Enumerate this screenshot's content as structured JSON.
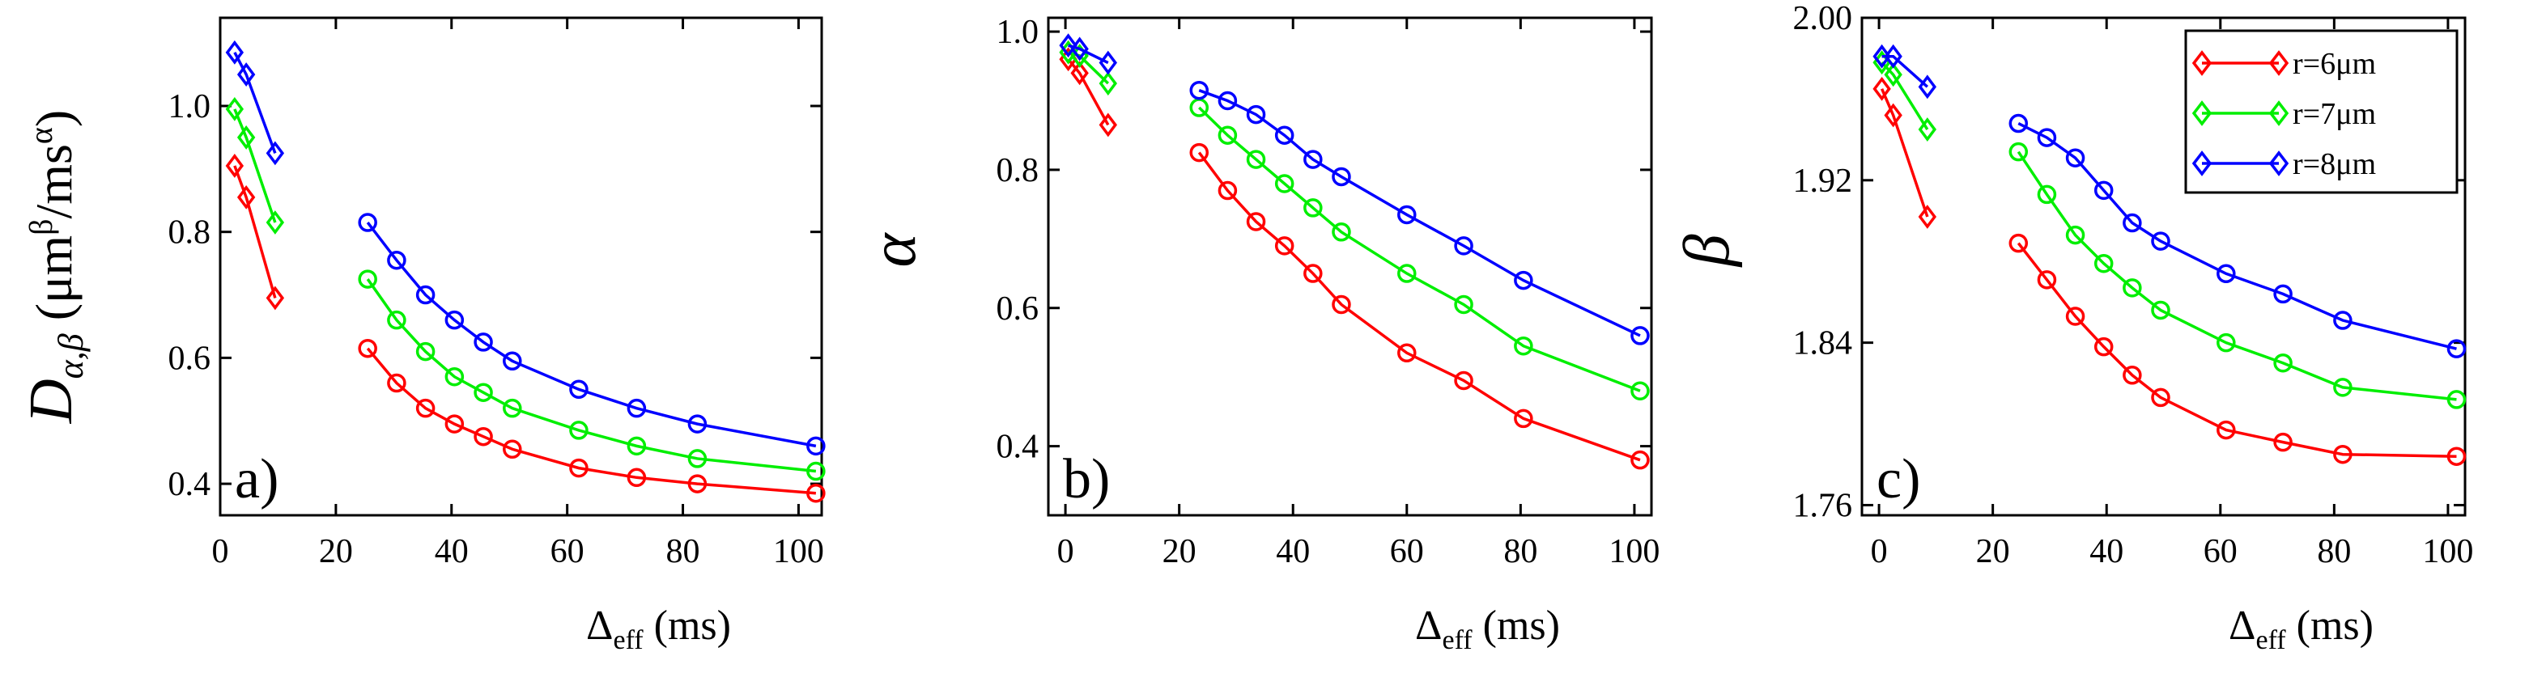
{
  "chart_data": [
    {
      "type": "line",
      "panel_label": "a)",
      "ylabel": {
        "main": "D",
        "sub": "α,β",
        "unit_open": " (μm",
        "unit_sup1": "β",
        "unit_mid": "/ms",
        "unit_sup2": "α",
        "unit_close": ")"
      },
      "xlabel": {
        "main": "Δ",
        "sub": "eff",
        "unit": " (ms)"
      },
      "xlim": [
        0,
        104
      ],
      "ylim": [
        0.35,
        1.14
      ],
      "xticks": [
        0,
        20,
        40,
        60,
        80,
        100
      ],
      "yticks": [
        0.4,
        0.6,
        0.8,
        1.0
      ],
      "ytick_labels": [
        "0.4",
        "0.6",
        "0.8",
        "1.0"
      ],
      "series": [
        {
          "name": "r=6μm",
          "color": "#ff0000",
          "groups": [
            {
              "marker": "diamond",
              "x": [
                2.5,
                4.5,
                9.5
              ],
              "y": [
                0.905,
                0.855,
                0.695
              ]
            },
            {
              "marker": "circle",
              "x": [
                25.5,
                30.5,
                35.5,
                40.5,
                45.5,
                50.5,
                62,
                72,
                82.5,
                103
              ],
              "y": [
                0.615,
                0.56,
                0.52,
                0.495,
                0.475,
                0.455,
                0.425,
                0.41,
                0.4,
                0.385
              ]
            }
          ]
        },
        {
          "name": "r=7μm",
          "color": "#00ee00",
          "groups": [
            {
              "marker": "diamond",
              "x": [
                2.5,
                4.5,
                9.5
              ],
              "y": [
                0.995,
                0.95,
                0.815
              ]
            },
            {
              "marker": "circle",
              "x": [
                25.5,
                30.5,
                35.5,
                40.5,
                45.5,
                50.5,
                62,
                72,
                82.5,
                103
              ],
              "y": [
                0.725,
                0.66,
                0.61,
                0.57,
                0.545,
                0.52,
                0.485,
                0.46,
                0.44,
                0.42
              ]
            }
          ]
        },
        {
          "name": "r=8μm",
          "color": "#0000ff",
          "groups": [
            {
              "marker": "diamond",
              "x": [
                2.5,
                4.5,
                9.5
              ],
              "y": [
                1.085,
                1.05,
                0.925
              ]
            },
            {
              "marker": "circle",
              "x": [
                25.5,
                30.5,
                35.5,
                40.5,
                45.5,
                50.5,
                62,
                72,
                82.5,
                103
              ],
              "y": [
                0.815,
                0.755,
                0.7,
                0.66,
                0.625,
                0.595,
                0.55,
                0.52,
                0.495,
                0.46
              ]
            }
          ]
        }
      ]
    },
    {
      "type": "line",
      "panel_label": "b)",
      "ylabel": {
        "main": "α"
      },
      "xlabel": {
        "main": "Δ",
        "sub": "eff",
        "unit": " (ms)"
      },
      "xlim": [
        -3,
        103
      ],
      "ylim": [
        0.3,
        1.02
      ],
      "xticks": [
        0,
        20,
        40,
        60,
        80,
        100
      ],
      "yticks": [
        0.4,
        0.6,
        0.8,
        1.0
      ],
      "ytick_labels": [
        "0.4",
        "0.6",
        "0.8",
        "1.0"
      ],
      "series": [
        {
          "name": "r=6μm",
          "color": "#ff0000",
          "groups": [
            {
              "marker": "diamond",
              "x": [
                0.5,
                2.5,
                7.5
              ],
              "y": [
                0.96,
                0.94,
                0.865
              ]
            },
            {
              "marker": "circle",
              "x": [
                23.5,
                28.5,
                33.5,
                38.5,
                43.5,
                48.5,
                60,
                70,
                80.5,
                101
              ],
              "y": [
                0.825,
                0.77,
                0.725,
                0.69,
                0.65,
                0.605,
                0.535,
                0.495,
                0.44,
                0.38
              ]
            }
          ]
        },
        {
          "name": "r=7μm",
          "color": "#00ee00",
          "groups": [
            {
              "marker": "diamond",
              "x": [
                0.5,
                2.5,
                7.5
              ],
              "y": [
                0.97,
                0.965,
                0.925
              ]
            },
            {
              "marker": "circle",
              "x": [
                23.5,
                28.5,
                33.5,
                38.5,
                43.5,
                48.5,
                60,
                70,
                80.5,
                101
              ],
              "y": [
                0.89,
                0.85,
                0.815,
                0.78,
                0.745,
                0.71,
                0.65,
                0.605,
                0.545,
                0.48
              ]
            }
          ]
        },
        {
          "name": "r=8μm",
          "color": "#0000ff",
          "groups": [
            {
              "marker": "diamond",
              "x": [
                0.5,
                2.5,
                7.5
              ],
              "y": [
                0.98,
                0.975,
                0.955
              ]
            },
            {
              "marker": "circle",
              "x": [
                23.5,
                28.5,
                33.5,
                38.5,
                43.5,
                48.5,
                60,
                70,
                80.5,
                101
              ],
              "y": [
                0.915,
                0.9,
                0.88,
                0.85,
                0.815,
                0.79,
                0.735,
                0.69,
                0.64,
                0.56
              ]
            }
          ]
        }
      ]
    },
    {
      "type": "line",
      "panel_label": "c)",
      "ylabel": {
        "main": "β"
      },
      "xlabel": {
        "main": "Δ",
        "sub": "eff",
        "unit": " (ms)"
      },
      "xlim": [
        -3,
        103
      ],
      "ylim": [
        1.755,
        2.0
      ],
      "xticks": [
        0,
        20,
        40,
        60,
        80,
        100
      ],
      "yticks": [
        1.76,
        1.84,
        1.92,
        2.0
      ],
      "ytick_labels": [
        "1.76",
        "1.84",
        "1.92",
        "2.00"
      ],
      "legend": {
        "position": "top-right",
        "entries": [
          "r=6μm",
          "r=7μm",
          "r=8μm"
        ]
      },
      "series": [
        {
          "name": "r=6μm",
          "color": "#ff0000",
          "groups": [
            {
              "marker": "diamond",
              "x": [
                0.5,
                2.5,
                8.5
              ],
              "y": [
                1.965,
                1.952,
                1.902
              ]
            },
            {
              "marker": "circle",
              "x": [
                24.5,
                29.5,
                34.5,
                39.5,
                44.5,
                49.5,
                61,
                71,
                81.5,
                101.5
              ],
              "y": [
                1.889,
                1.871,
                1.853,
                1.838,
                1.824,
                1.813,
                1.797,
                1.791,
                1.785,
                1.784
              ]
            }
          ]
        },
        {
          "name": "r=7μm",
          "color": "#00ee00",
          "groups": [
            {
              "marker": "diamond",
              "x": [
                0.5,
                2.5,
                8.5
              ],
              "y": [
                1.978,
                1.972,
                1.945
              ]
            },
            {
              "marker": "circle",
              "x": [
                24.5,
                29.5,
                34.5,
                39.5,
                44.5,
                49.5,
                61,
                71,
                81.5,
                101.5
              ],
              "y": [
                1.934,
                1.913,
                1.893,
                1.879,
                1.867,
                1.856,
                1.84,
                1.83,
                1.818,
                1.812
              ]
            }
          ]
        },
        {
          "name": "r=8μm",
          "color": "#0000ff",
          "groups": [
            {
              "marker": "diamond",
              "x": [
                0.5,
                2.5,
                8.5
              ],
              "y": [
                1.981,
                1.981,
                1.966
              ]
            },
            {
              "marker": "circle",
              "x": [
                24.5,
                29.5,
                34.5,
                39.5,
                44.5,
                49.5,
                61,
                71,
                81.5,
                101.5
              ],
              "y": [
                1.948,
                1.941,
                1.931,
                1.915,
                1.899,
                1.89,
                1.874,
                1.864,
                1.851,
                1.837
              ]
            }
          ]
        }
      ]
    }
  ]
}
